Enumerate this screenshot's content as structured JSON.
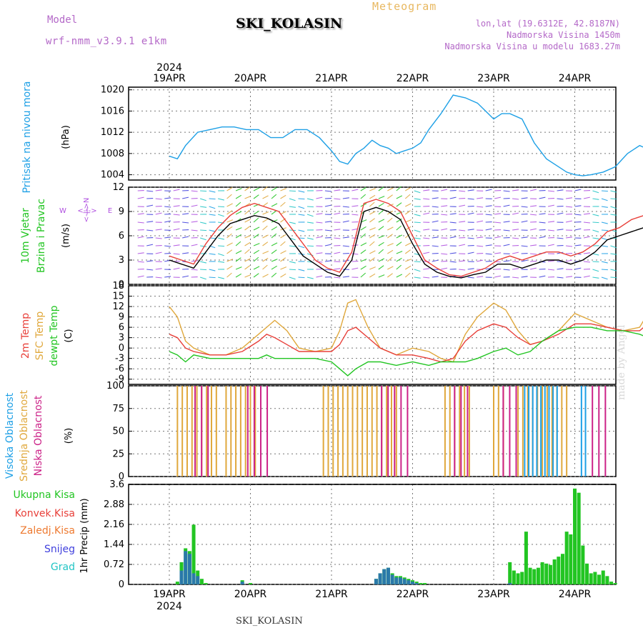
{
  "header": {
    "model_label": "Model",
    "model_name": "wrf-nmm_v3.9.1 e1km",
    "meteogram": "Meteogram",
    "station": "SKI_KOLASIN",
    "lonlat": "lon,lat (19.6312E, 42.8187N)",
    "altitude": "Nadmorska Visina 1450m",
    "model_altitude": "Nadmorska Visina u modelu 1683.27m"
  },
  "footer": {
    "station": "SKI_KOLASIN",
    "credit": "made by Angel"
  },
  "colors": {
    "pressure": "#1ea0e6",
    "wind_label": "#22c522",
    "wind_dir": "#b050e0",
    "temp2m": "#e8403a",
    "sfc": "#e0a83c",
    "dew": "#22c522",
    "high_cloud": "#1ea0e6",
    "mid_cloud": "#e0a83c",
    "low_cloud": "#cc2288",
    "precip_total": "#22c522",
    "precip_conv": "#e8403a",
    "precip_frz": "#ee7a30",
    "snow": "#4040dd",
    "grad": "#22c5c5"
  },
  "chart_data": [
    {
      "type": "line",
      "panel": "pressure",
      "ylabel_vertical": "Pritisak na nivou mora",
      "unit": "(hPa)",
      "ylim": [
        1003,
        1020.5
      ],
      "yticks": [
        "1020",
        "1016",
        "1012",
        "1008",
        "1004"
      ],
      "x_day_start": 0.0,
      "top_year": "2024",
      "top_dates": [
        "19APR",
        "20APR",
        "21APR",
        "22APR",
        "23APR",
        "24APR"
      ],
      "x": [
        0.0,
        0.1,
        0.2,
        0.35,
        0.5,
        0.65,
        0.8,
        0.95,
        1.1,
        1.25,
        1.4,
        1.55,
        1.7,
        1.85,
        2.0,
        2.1,
        2.2,
        2.3,
        2.4,
        2.5,
        2.6,
        2.7,
        2.8,
        2.9,
        3.0,
        3.1,
        3.2,
        3.35,
        3.5,
        3.65,
        3.8,
        3.9,
        4.0,
        4.1,
        4.2,
        4.35,
        4.5,
        4.65,
        4.8,
        4.9,
        5.0,
        5.1,
        5.2,
        5.35,
        5.5,
        5.65,
        5.8,
        5.95,
        6.05
      ],
      "values": [
        1007.5,
        1007,
        1009.5,
        1012,
        1012.5,
        1013,
        1013,
        1012.5,
        1012.5,
        1011,
        1011,
        1012.5,
        1012.5,
        1011,
        1008.5,
        1006.5,
        1006,
        1008,
        1009,
        1010.5,
        1009.5,
        1009,
        1008,
        1008.5,
        1009,
        1010,
        1012.5,
        1015.5,
        1019,
        1018.5,
        1017.5,
        1016,
        1014.5,
        1015.5,
        1015.5,
        1014.5,
        1010,
        1007,
        1005.5,
        1004.5,
        1004,
        1003.8,
        1004,
        1004.5,
        1005.5,
        1008,
        1009.5,
        1008.5,
        1008.5
      ],
      "series_name": "pressure"
    },
    {
      "type": "line",
      "panel": "wind",
      "ylabel_vertical_1": "10m Vjetar",
      "ylabel_vertical_2": "Brzina i Pravac",
      "unit": "(m/s)",
      "compass": {
        "n": "N",
        "e": "E",
        "w": "W",
        "s": "S",
        "arrows": "<-|->"
      },
      "ylim": [
        0,
        12
      ],
      "yticks": [
        "12",
        "9",
        "6",
        "3",
        "0"
      ],
      "x": [
        0.0,
        0.15,
        0.3,
        0.45,
        0.6,
        0.75,
        0.9,
        1.05,
        1.2,
        1.35,
        1.5,
        1.65,
        1.8,
        1.95,
        2.1,
        2.25,
        2.4,
        2.55,
        2.7,
        2.85,
        3.0,
        3.15,
        3.3,
        3.45,
        3.6,
        3.75,
        3.9,
        4.05,
        4.2,
        4.35,
        4.5,
        4.65,
        4.8,
        4.95,
        5.1,
        5.25,
        5.4,
        5.55,
        5.7,
        5.85,
        6.0
      ],
      "speed": [
        3,
        2.5,
        2,
        4,
        6,
        7.5,
        8,
        8.5,
        8.2,
        7.5,
        5.5,
        3.5,
        2.5,
        1.5,
        1,
        3,
        9,
        9.5,
        9,
        8,
        5,
        2.5,
        1.5,
        1,
        0.8,
        1.2,
        1.5,
        2.5,
        2.5,
        2,
        2.5,
        3,
        3,
        2.5,
        3,
        4,
        5.5,
        6,
        6.5,
        7,
        8
      ],
      "gust": [
        3.5,
        3,
        2.5,
        5,
        7,
        8.5,
        9.5,
        10,
        9.5,
        9,
        7,
        5,
        3,
        2,
        1.5,
        4,
        10,
        10.5,
        10,
        9,
        6,
        3,
        2,
        1.2,
        1,
        1.5,
        2,
        3,
        3.5,
        3,
        3.5,
        4,
        4,
        3.5,
        4,
        5,
        6.5,
        7,
        8,
        8.5,
        9.5
      ]
    },
    {
      "type": "line",
      "panel": "temperature",
      "ylabel_vertical_1": "2m Temp",
      "ylabel_vertical_2": "SFC Temp",
      "ylabel_vertical_3": "dewpt Temp",
      "unit": "(C)",
      "ylim": [
        -10.5,
        18
      ],
      "yticks": [
        "18",
        "15",
        "12",
        "9",
        "6",
        "3",
        "0",
        "-3",
        "-6",
        "-9"
      ],
      "x": [
        0.0,
        0.1,
        0.2,
        0.3,
        0.5,
        0.7,
        0.9,
        1.1,
        1.2,
        1.3,
        1.45,
        1.6,
        1.8,
        2.0,
        2.1,
        2.2,
        2.3,
        2.45,
        2.6,
        2.8,
        3.0,
        3.2,
        3.35,
        3.5,
        3.65,
        3.8,
        4.0,
        4.15,
        4.3,
        4.45,
        4.6,
        4.8,
        5.0,
        5.2,
        5.4,
        5.6,
        5.8,
        5.9,
        6.05
      ],
      "t2m": [
        4,
        3,
        0,
        -1,
        -2,
        -2,
        -1,
        2,
        4,
        3,
        1,
        -1,
        -1,
        -1,
        1,
        5,
        6,
        3,
        0,
        -2,
        -2,
        -3,
        -4,
        -3,
        2,
        5,
        7,
        6,
        3,
        1,
        2,
        4,
        7,
        7,
        6,
        5,
        5,
        7,
        7
      ],
      "sfc": [
        12,
        9,
        2,
        0,
        -2,
        -2,
        0,
        4,
        6,
        8,
        5,
        0,
        -1,
        0,
        5,
        13,
        14,
        6,
        0,
        -2,
        0,
        -1,
        -3,
        -4,
        4,
        9,
        13,
        11,
        5,
        1,
        2,
        5,
        10,
        8,
        6,
        5,
        6,
        10,
        14
      ],
      "dew": [
        -1,
        -2,
        -4,
        -2,
        -3,
        -3,
        -3,
        -3,
        -2,
        -3,
        -3,
        -3,
        -3,
        -4,
        -6,
        -8,
        -6,
        -4,
        -4,
        -5,
        -4,
        -5,
        -4,
        -4,
        -4,
        -3,
        -1,
        0,
        -2,
        -1,
        2,
        5,
        6,
        6,
        5,
        5,
        4,
        3,
        2
      ]
    },
    {
      "type": "bar",
      "panel": "clouds",
      "ylabel_vertical_1": "Visoka Oblacnost",
      "ylabel_vertical_2": "Srednja Oblacnost",
      "ylabel_vertical_3": "Niska Oblacnost",
      "unit": "(%)",
      "ylim": [
        0,
        100
      ],
      "yticks": [
        "100",
        "75",
        "50",
        "25",
        "0"
      ],
      "mid_intervals": [
        [
          0.1,
          0.6
        ],
        [
          0.7,
          1.1
        ],
        [
          1.9,
          2.85
        ],
        [
          3.4,
          3.7
        ],
        [
          4.0,
          4.15
        ],
        [
          4.3,
          4.95
        ]
      ],
      "high_intervals": [
        [
          4.4,
          4.8
        ],
        [
          5.1,
          5.15
        ]
      ],
      "low_intervals": [
        [
          0.3,
          0.5
        ],
        [
          0.95,
          1.2
        ],
        [
          2.6,
          3.0
        ],
        [
          3.5,
          3.7
        ],
        [
          4.1,
          4.3
        ],
        [
          5.2,
          5.4
        ],
        [
          5.8,
          5.85
        ]
      ]
    },
    {
      "type": "bar",
      "panel": "precip",
      "legend": [
        "Ukupna Kisa",
        "Konvek.Kisa",
        "Zaledj.Kisa",
        "Snijeg",
        "Grad"
      ],
      "ylabel": "1hr Precip (mm)",
      "ylim": [
        0,
        3.6
      ],
      "yticks": [
        "3.6",
        "2.88",
        "2.16",
        "1.44",
        "0.72",
        "0"
      ],
      "bottom_dates": [
        "19APR",
        "20APR",
        "21APR",
        "22APR",
        "23APR",
        "24APR"
      ],
      "bottom_year": "2024",
      "x": [
        0.1,
        0.15,
        0.2,
        0.25,
        0.3,
        0.35,
        0.4,
        0.45,
        0.9,
        1.0,
        2.55,
        2.6,
        2.65,
        2.7,
        2.75,
        2.8,
        2.85,
        2.9,
        2.95,
        3.0,
        3.05,
        3.1,
        3.15,
        4.2,
        4.25,
        4.3,
        4.35,
        4.4,
        4.45,
        4.5,
        4.55,
        4.6,
        4.65,
        4.7,
        4.75,
        4.8,
        4.85,
        4.9,
        4.95,
        5.0,
        5.05,
        5.1,
        5.15,
        5.2,
        5.25,
        5.3,
        5.35,
        5.4,
        5.45,
        5.5
      ],
      "total": [
        0.1,
        0.8,
        1.3,
        1.2,
        2.15,
        0.5,
        0.2,
        0.05,
        0.15,
        0.05,
        0.2,
        0.4,
        0.55,
        0.6,
        0.4,
        0.3,
        0.3,
        0.25,
        0.2,
        0.15,
        0.1,
        0.05,
        0.05,
        0.8,
        0.5,
        0.4,
        0.45,
        1.9,
        0.6,
        0.55,
        0.6,
        0.8,
        0.75,
        0.7,
        0.9,
        1.0,
        1.1,
        1.9,
        1.8,
        3.45,
        3.3,
        1.4,
        0.75,
        0.4,
        0.45,
        0.35,
        0.5,
        0.3,
        0.1,
        0.05
      ],
      "snow": [
        0,
        0.5,
        1.2,
        1.1,
        0.4,
        0.3,
        0,
        0,
        0.1,
        0,
        0.2,
        0.4,
        0.55,
        0.6,
        0.35,
        0.25,
        0.25,
        0.2,
        0.15,
        0.1,
        0.05,
        0,
        0,
        0.05,
        0,
        0,
        0,
        0,
        0,
        0,
        0,
        0,
        0,
        0,
        0,
        0,
        0,
        0,
        0,
        0,
        0,
        0,
        0,
        0,
        0,
        0,
        0,
        0,
        0,
        0
      ]
    }
  ]
}
